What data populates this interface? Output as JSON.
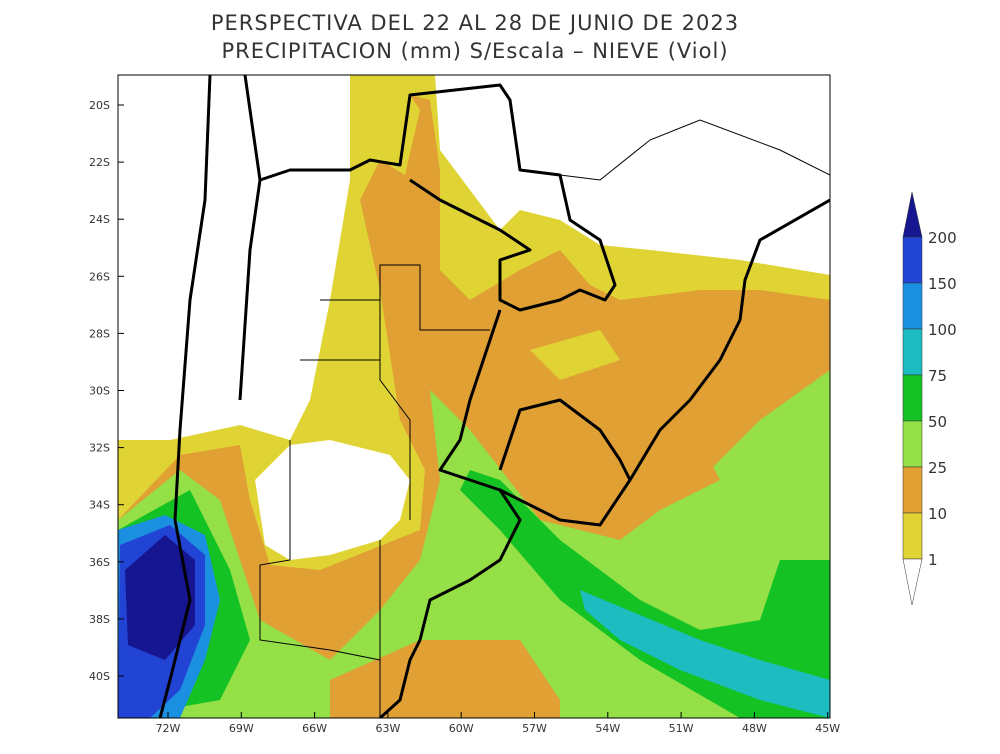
{
  "header": {
    "title_line1": "PERSPECTIVA DEL 22 AL 28 DE JUNIO DE 2023",
    "title_line2": "PRECIPITACION (mm) S/Escala – NIEVE (Viol)"
  },
  "map": {
    "lat_labels": [
      "20S",
      "22S",
      "24S",
      "26S",
      "28S",
      "30S",
      "32S",
      "34S",
      "36S",
      "38S",
      "40S"
    ],
    "lon_labels": [
      "72W",
      "69W",
      "66W",
      "63W",
      "60W",
      "57W",
      "54W",
      "51W",
      "48W",
      "45W"
    ]
  },
  "colorbar": {
    "labels": [
      "200",
      "150",
      "100",
      "75",
      "50",
      "25",
      "10",
      "1"
    ]
  }
}
